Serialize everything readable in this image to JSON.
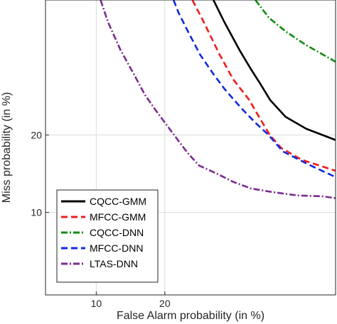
{
  "chart_data": {
    "type": "line",
    "title": "",
    "xlabel": "False Alarm probability (in %)",
    "ylabel": "Miss probability (in %)",
    "x_scale": "probit",
    "y_scale": "probit",
    "xlim": [
      5.4,
      60
    ],
    "ylim": [
      4,
      47
    ],
    "x_ticks": [
      {
        "value": 10,
        "label": "10"
      },
      {
        "value": 20,
        "label": "20"
      }
    ],
    "y_ticks": [
      {
        "value": 10,
        "label": "10"
      },
      {
        "value": 20,
        "label": "20"
      }
    ],
    "grid": true,
    "legend_position": "bottom-left",
    "series": [
      {
        "name": "CQCC-GMM",
        "color": "#000000",
        "dash": "solid",
        "points": [
          [
            29.8,
            47
          ],
          [
            32.3,
            42
          ],
          [
            35.8,
            36
          ],
          [
            38.6,
            32
          ],
          [
            41.0,
            29
          ],
          [
            43.4,
            26
          ],
          [
            47.3,
            23
          ],
          [
            52.6,
            21
          ],
          [
            60,
            19.2
          ]
        ]
      },
      {
        "name": "MFCC-GMM",
        "color": "#ee1c1c",
        "dash": "dash",
        "points": [
          [
            25.3,
            47
          ],
          [
            27.7,
            42
          ],
          [
            31.2,
            35
          ],
          [
            34.3,
            30
          ],
          [
            38.2,
            26
          ],
          [
            40.6,
            23
          ],
          [
            43.3,
            20
          ],
          [
            46.2,
            18
          ],
          [
            51.4,
            16.3
          ],
          [
            60,
            14.8
          ]
        ]
      },
      {
        "name": "CQCC-DNN",
        "color": "#118b11",
        "dash": "dashdot",
        "points": [
          [
            39.7,
            47
          ],
          [
            43.1,
            43
          ],
          [
            47.3,
            40
          ],
          [
            52.6,
            37
          ],
          [
            56.0,
            35.4
          ],
          [
            60,
            33.5
          ]
        ]
      },
      {
        "name": "MFCC-DNN",
        "color": "#1028e0",
        "dash": "dash",
        "points": [
          [
            21.6,
            47
          ],
          [
            22.6,
            44
          ],
          [
            24.4,
            40
          ],
          [
            26.9,
            35
          ],
          [
            29.8,
            31
          ],
          [
            32.4,
            28
          ],
          [
            36.3,
            24.5
          ],
          [
            39.7,
            22
          ],
          [
            43.0,
            20
          ],
          [
            46.6,
            17.5
          ],
          [
            53.3,
            15.6
          ],
          [
            60,
            14
          ]
        ]
      },
      {
        "name": "LTAS-DNN",
        "color": "#7b2c8f",
        "dash": "dashdot",
        "points": [
          [
            10.5,
            47
          ],
          [
            11.4,
            42
          ],
          [
            13.0,
            36
          ],
          [
            14.9,
            31
          ],
          [
            16.6,
            27
          ],
          [
            18.5,
            24
          ],
          [
            21.0,
            20.8
          ],
          [
            24.3,
            17.3
          ],
          [
            26.7,
            15.5
          ],
          [
            30.3,
            14.5
          ],
          [
            34.3,
            13.4
          ],
          [
            38.6,
            12.6
          ],
          [
            43.7,
            12.2
          ],
          [
            50.4,
            11.8
          ],
          [
            56.7,
            11.7
          ],
          [
            60,
            11.5
          ]
        ]
      }
    ]
  }
}
